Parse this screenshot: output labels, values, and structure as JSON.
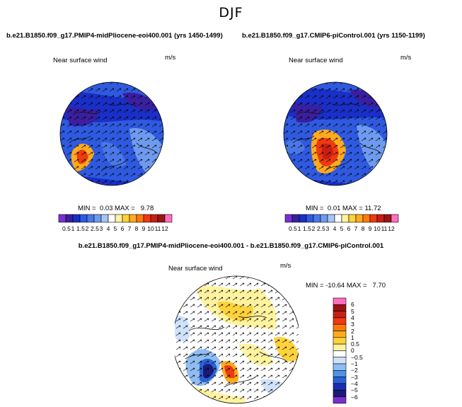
{
  "season_title": "DJF",
  "panels": {
    "left": {
      "case_title": "b.e21.B1850.f09_g17.PMIP4-midPliocene-eoi400.001 (yrs 1450-1499)",
      "variable": "Near surface wind",
      "units": "m/s",
      "min_label": "MIN =",
      "min_value": "0.03",
      "max_label": "MAX =",
      "max_value": "9.78"
    },
    "right": {
      "case_title": "b.e21.B1850.f09_g17.CMIP6-piControl.001 (yrs 1150-1199)",
      "variable": "Near surface wind",
      "units": "m/s",
      "min_label": "MIN =",
      "min_value": "0.01",
      "max_label": "MAX =",
      "max_value": "11.72"
    },
    "diff": {
      "case_title": "b.e21.B1850.f09_g17.PMIP4-midPliocene-eoi400.001 - b.e21.B1850.f09_g17.CMIP6-piControl.001",
      "variable": "Near surface wind",
      "units": "m/s",
      "min_label": "MIN =",
      "min_value": "-10.64",
      "max_label": "MAX =",
      "max_value": "7.70"
    }
  },
  "abs_colorbar": {
    "labels": [
      "0.5",
      "1",
      "1.5",
      "2",
      "2.5",
      "3",
      "4",
      "5",
      "6",
      "7",
      "8",
      "9",
      "10",
      "11",
      "12"
    ],
    "colors": [
      "#7b2fd2",
      "#3a1fa0",
      "#1a2fc8",
      "#2f5ae0",
      "#4a78e8",
      "#6e9bf0",
      "#a7c4f5",
      "#ffffff",
      "#fff3a0",
      "#ffd23c",
      "#ffab1e",
      "#ff7a0a",
      "#ee3a10",
      "#c81e14",
      "#9a1414",
      "#ff6fc0"
    ]
  },
  "diff_colorbar": {
    "labels": [
      "6",
      "5",
      "4",
      "3",
      "2",
      "1",
      "0.5",
      "0",
      "−0.5",
      "−1",
      "−2",
      "−3",
      "−4",
      "−5",
      "−6"
    ],
    "colors": [
      "#ff6fc0",
      "#9a1414",
      "#c81e14",
      "#ee3a10",
      "#ff7a0a",
      "#ffab1e",
      "#ffd23c",
      "#fff3a0",
      "#ffffff",
      "#cfe2fa",
      "#8fbdf2",
      "#4f93e6",
      "#2a62d6",
      "#1c2fb0",
      "#1a1a7a",
      "#7b2fd2"
    ]
  }
}
